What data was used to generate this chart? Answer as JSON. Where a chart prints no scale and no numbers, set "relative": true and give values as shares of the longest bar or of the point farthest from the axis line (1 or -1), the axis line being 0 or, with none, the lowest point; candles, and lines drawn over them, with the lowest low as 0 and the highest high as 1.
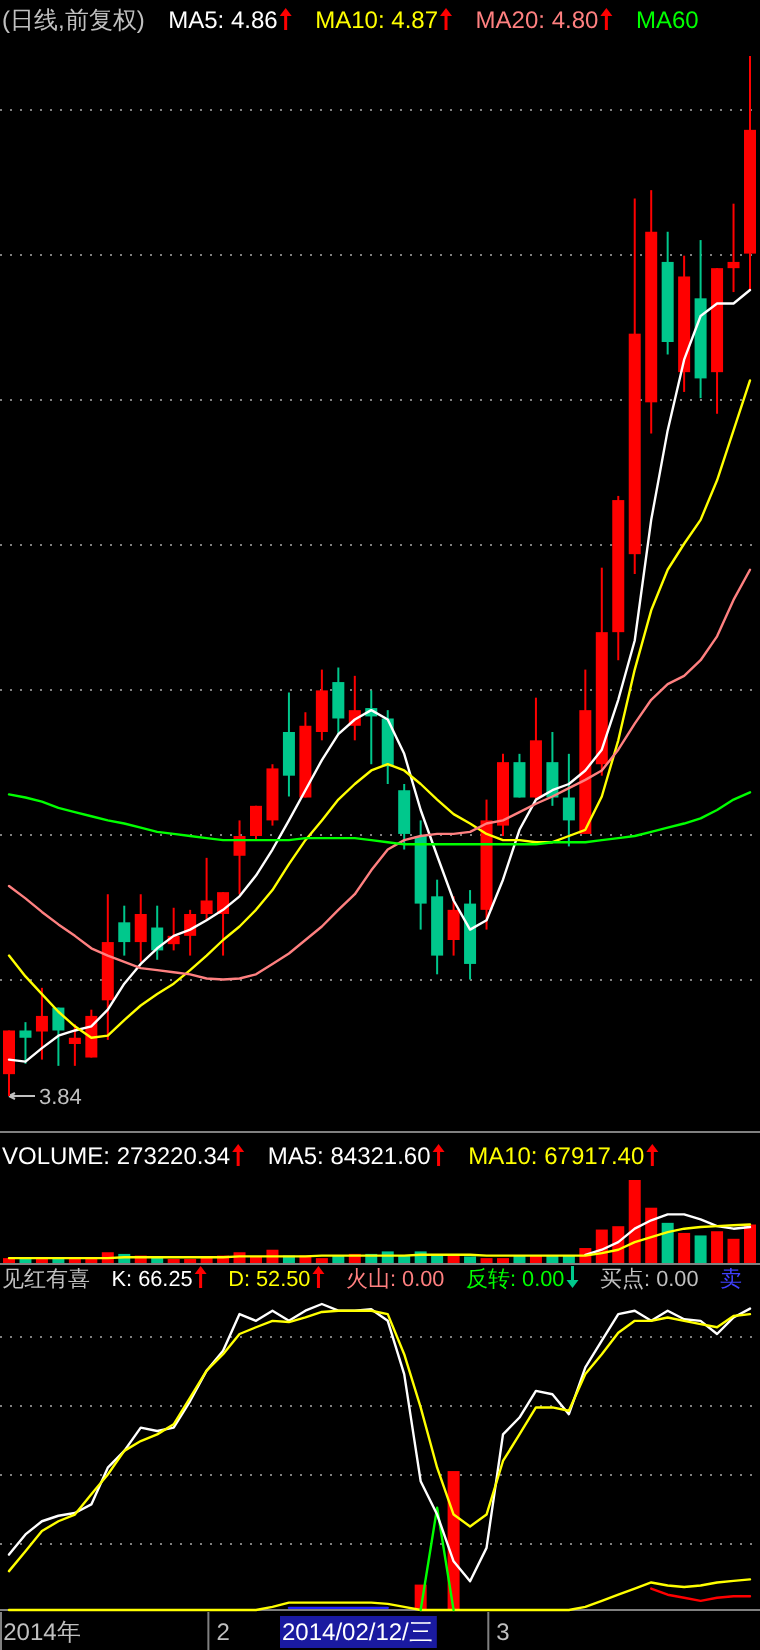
{
  "chart_data": [
    {
      "type": "candlestick",
      "title": "(日线,前复权)",
      "relative": true,
      "tick_labels": false,
      "grid": "y",
      "legend": "top",
      "categories": [
        null,
        null,
        null,
        null,
        null,
        null,
        null,
        null,
        null,
        null,
        null,
        null,
        null,
        null,
        null,
        null,
        null,
        null,
        null,
        null,
        null,
        null,
        null,
        null,
        null,
        null,
        null,
        null,
        null,
        null,
        null,
        null,
        null,
        null,
        null,
        null,
        null,
        null,
        null,
        null,
        null,
        null,
        null,
        null,
        null,
        null
      ],
      "ohlc": [
        [
          0.021,
          0.063,
          0,
          0.063
        ],
        [
          0.063,
          0.071,
          0.031,
          0.056
        ],
        [
          0.062,
          0.104,
          0.035,
          0.077
        ],
        [
          0.085,
          0.085,
          0.029,
          0.063
        ],
        [
          0.05,
          0.069,
          0.029,
          0.056
        ],
        [
          0.037,
          0.083,
          0.037,
          0.077
        ],
        [
          0.092,
          0.194,
          0.054,
          0.148
        ],
        [
          0.167,
          0.183,
          0.135,
          0.148
        ],
        [
          0.148,
          0.194,
          0.129,
          0.175
        ],
        [
          0.162,
          0.183,
          0.131,
          0.14
        ],
        [
          0.146,
          0.181,
          0.14,
          0.154
        ],
        [
          0.154,
          0.179,
          0.135,
          0.175
        ],
        [
          0.175,
          0.229,
          0.169,
          0.188
        ],
        [
          0.175,
          0.196,
          0.135,
          0.196
        ],
        [
          0.231,
          0.265,
          0.194,
          0.25
        ],
        [
          0.25,
          0.279,
          0.246,
          0.279
        ],
        [
          0.265,
          0.319,
          0.26,
          0.315
        ],
        [
          0.35,
          0.388,
          0.288,
          0.308
        ],
        [
          0.287,
          0.369,
          0.287,
          0.356
        ],
        [
          0.35,
          0.41,
          0.342,
          0.39
        ],
        [
          0.398,
          0.412,
          0.348,
          0.363
        ],
        [
          0.356,
          0.404,
          0.342,
          0.371
        ],
        [
          0.373,
          0.39,
          0.319,
          0.365
        ],
        [
          0.363,
          0.371,
          0.3,
          0.317
        ],
        [
          0.294,
          0.3,
          0.237,
          0.252
        ],
        [
          0.25,
          0.265,
          0.16,
          0.185
        ],
        [
          0.192,
          0.208,
          0.117,
          0.135
        ],
        [
          0.15,
          0.192,
          0.135,
          0.179
        ],
        [
          0.185,
          0.198,
          0.112,
          0.127
        ],
        [
          0.179,
          0.285,
          0.16,
          0.265
        ],
        [
          0.26,
          0.329,
          0.25,
          0.321
        ],
        [
          0.321,
          0.329,
          0.287,
          0.287
        ],
        [
          0.287,
          0.383,
          0.285,
          0.342
        ],
        [
          0.321,
          0.35,
          0.279,
          0.287
        ],
        [
          0.287,
          0.329,
          0.24,
          0.265
        ],
        [
          0.252,
          0.41,
          0.252,
          0.371
        ],
        [
          0.319,
          0.508,
          0.308,
          0.446
        ],
        [
          0.446,
          0.577,
          0.419,
          0.573
        ],
        [
          0.521,
          0.863,
          0.502,
          0.733
        ],
        [
          0.667,
          0.871,
          0.637,
          0.831
        ],
        [
          0.802,
          0.831,
          0.713,
          0.725
        ],
        [
          0.696,
          0.808,
          0.677,
          0.788
        ],
        [
          0.767,
          0.823,
          0.671,
          0.69
        ],
        [
          0.696,
          0.796,
          0.656,
          0.796
        ],
        [
          0.796,
          0.858,
          0.773,
          0.802
        ],
        [
          0.81,
          1,
          0.775,
          0.929
        ]
      ],
      "colors": [
        "#ff0000",
        "#00c88c",
        "#ff0000",
        "#00c88c",
        "#ff0000",
        "#ff0000",
        "#ff0000",
        "#00c88c",
        "#ff0000",
        "#00c88c",
        "#ff0000",
        "#ff0000",
        "#ff0000",
        "#ff0000",
        "#ff0000",
        "#ff0000",
        "#ff0000",
        "#00c88c",
        "#ff0000",
        "#ff0000",
        "#00c88c",
        "#ff0000",
        "#00c88c",
        "#00c88c",
        "#00c88c",
        "#00c88c",
        "#00c88c",
        "#ff0000",
        "#00c88c",
        "#ff0000",
        "#ff0000",
        "#00c88c",
        "#ff0000",
        "#00c88c",
        "#00c88c",
        "#ff0000",
        "#ff0000",
        "#ff0000",
        "#ff0000",
        "#ff0000",
        "#00c88c",
        "#ff0000",
        "#00c88c",
        "#ff0000",
        "#ff0000",
        "#ff0000"
      ],
      "series": [
        {
          "type": "line",
          "name": "MA5: 4.86",
          "color": "#ffffff",
          "values": [
            0.035,
            0.033,
            0.046,
            0.058,
            0.063,
            0.067,
            0.083,
            0.108,
            0.127,
            0.142,
            0.154,
            0.16,
            0.169,
            0.179,
            0.192,
            0.212,
            0.237,
            0.265,
            0.294,
            0.323,
            0.348,
            0.362,
            0.371,
            0.362,
            0.329,
            0.275,
            0.231,
            0.188,
            0.16,
            0.169,
            0.208,
            0.256,
            0.285,
            0.294,
            0.3,
            0.313,
            0.333,
            0.381,
            0.438,
            0.554,
            0.64,
            0.708,
            0.75,
            0.762,
            0.762,
            0.775
          ]
        },
        {
          "type": "line",
          "name": "MA10: 4.87",
          "color": "#ffff00",
          "values": [
            0.135,
            0.115,
            0.098,
            0.081,
            0.067,
            0.056,
            0.058,
            0.073,
            0.087,
            0.098,
            0.108,
            0.121,
            0.135,
            0.15,
            0.163,
            0.179,
            0.198,
            0.223,
            0.246,
            0.265,
            0.285,
            0.3,
            0.313,
            0.319,
            0.313,
            0.3,
            0.285,
            0.271,
            0.262,
            0.252,
            0.246,
            0.246,
            0.244,
            0.244,
            0.25,
            0.256,
            0.288,
            0.342,
            0.41,
            0.467,
            0.506,
            0.531,
            0.554,
            0.592,
            0.64,
            0.688
          ]
        },
        {
          "type": "line",
          "name": "MA20: 4.80",
          "color": "#ff8080",
          "values": [
            0.202,
            0.19,
            0.177,
            0.165,
            0.154,
            0.142,
            0.135,
            0.129,
            0.123,
            0.121,
            0.119,
            0.117,
            0.113,
            0.112,
            0.113,
            0.117,
            0.127,
            0.137,
            0.15,
            0.163,
            0.179,
            0.194,
            0.217,
            0.237,
            0.246,
            0.25,
            0.252,
            0.252,
            0.254,
            0.262,
            0.265,
            0.273,
            0.281,
            0.288,
            0.296,
            0.304,
            0.313,
            0.333,
            0.358,
            0.381,
            0.396,
            0.404,
            0.419,
            0.442,
            0.477,
            0.506
          ]
        },
        {
          "type": "line",
          "name": "MA60",
          "color": "#00ff00",
          "values": [
            0.29,
            0.287,
            0.283,
            0.277,
            0.273,
            0.269,
            0.265,
            0.262,
            0.258,
            0.254,
            0.252,
            0.25,
            0.248,
            0.246,
            0.246,
            0.246,
            0.246,
            0.246,
            0.248,
            0.248,
            0.248,
            0.248,
            0.246,
            0.244,
            0.242,
            0.242,
            0.242,
            0.242,
            0.242,
            0.242,
            0.242,
            0.242,
            0.242,
            0.244,
            0.244,
            0.244,
            0.246,
            0.248,
            0.25,
            0.254,
            0.258,
            0.262,
            0.267,
            0.275,
            0.285,
            0.292
          ]
        }
      ],
      "annotations": [
        "3.84"
      ]
    },
    {
      "type": "bar",
      "relative": true,
      "tick_labels": false,
      "legend": "top",
      "categories": [
        null,
        null,
        null,
        null,
        null,
        null,
        null,
        null,
        null,
        null,
        null,
        null,
        null,
        null,
        null,
        null,
        null,
        null,
        null,
        null,
        null,
        null,
        null,
        null,
        null,
        null,
        null,
        null,
        null,
        null,
        null,
        null,
        null,
        null,
        null,
        null,
        null,
        null,
        null,
        null,
        null,
        null,
        null,
        null,
        null,
        null
      ],
      "series": [
        {
          "type": "bar",
          "name": "VOLUME: 273220.34",
          "color": "#ffffff",
          "colors": [
            "#ff0000",
            "#00c88c",
            "#ff0000",
            "#00c88c",
            "#ff0000",
            "#ff0000",
            "#ff0000",
            "#00c88c",
            "#ff0000",
            "#00c88c",
            "#ff0000",
            "#ff0000",
            "#ff0000",
            "#ff0000",
            "#ff0000",
            "#ff0000",
            "#ff0000",
            "#00c88c",
            "#ff0000",
            "#ff0000",
            "#00c88c",
            "#ff0000",
            "#00c88c",
            "#00c88c",
            "#00c88c",
            "#00c88c",
            "#00c88c",
            "#ff0000",
            "#00c88c",
            "#ff0000",
            "#ff0000",
            "#00c88c",
            "#ff0000",
            "#00c88c",
            "#00c88c",
            "#ff0000",
            "#ff0000",
            "#ff0000",
            "#ff0000",
            "#ff0000",
            "#00c88c",
            "#ff0000",
            "#00c88c",
            "#ff0000",
            "#ff0000",
            "#ff0000"
          ],
          "values": [
            0.07,
            0.07,
            0.06,
            0.07,
            0.07,
            0.07,
            0.14,
            0.12,
            0.1,
            0.08,
            0.06,
            0.06,
            0.08,
            0.1,
            0.14,
            0.09,
            0.17,
            0.1,
            0.1,
            0.07,
            0.1,
            0.12,
            0.12,
            0.15,
            0.1,
            0.15,
            0.1,
            0.1,
            0.09,
            0.07,
            0.07,
            0.1,
            0.1,
            0.1,
            0.1,
            0.19,
            0.41,
            0.45,
            1,
            0.67,
            0.49,
            0.37,
            0.34,
            0.39,
            0.3,
            0.47
          ]
        }
      ]
    },
    {
      "type": "line",
      "relative": true,
      "tick_labels": false,
      "legend": "top",
      "categories": [
        null,
        null,
        null,
        null,
        null,
        null,
        null,
        null,
        null,
        null,
        null,
        null,
        null,
        null,
        null,
        null,
        null,
        null,
        null,
        null,
        null,
        null,
        null,
        null,
        null,
        null,
        null,
        null,
        null,
        null,
        null,
        null,
        null,
        null,
        null,
        null,
        null,
        null,
        null,
        null,
        null,
        null,
        null,
        null,
        null,
        null
      ],
      "series": [
        {
          "type": "line",
          "name": "MA5: 84321.60",
          "color": "#ffffff",
          "values": [
            null,
            null,
            null,
            null,
            null,
            null,
            null,
            null,
            null,
            null,
            null,
            null,
            null,
            null,
            null,
            null,
            null,
            null,
            null,
            null,
            null,
            null,
            null,
            null,
            null,
            null,
            null,
            null,
            null,
            null,
            null,
            null,
            null,
            null,
            null,
            0.186,
            0.288,
            0.441,
            0.712,
            0.881,
            1,
            1,
            0.898,
            0.763,
            0.712,
            0.746
          ]
        },
        {
          "type": "line",
          "name": "MA10: 67917.40",
          "color": "#ffff00",
          "values": [
            0.119,
            0.119,
            0.119,
            0.119,
            0.119,
            0.119,
            0.119,
            0.136,
            0.136,
            0.136,
            0.136,
            0.136,
            0.136,
            0.136,
            0.153,
            0.153,
            0.153,
            0.153,
            0.153,
            0.169,
            0.169,
            0.169,
            0.169,
            0.169,
            0.169,
            0.186,
            0.186,
            0.186,
            0.186,
            0.169,
            0.169,
            0.169,
            0.169,
            0.169,
            0.169,
            0.169,
            0.22,
            0.288,
            0.441,
            0.542,
            0.644,
            0.712,
            0.746,
            0.763,
            0.78,
            0.797
          ]
        }
      ]
    },
    {
      "type": "line",
      "title": "见红有喜",
      "relative": true,
      "tick_labels": "x",
      "grid": "y",
      "legend": "top",
      "categories": [
        null,
        null,
        "2014年",
        null,
        null,
        null,
        null,
        null,
        null,
        null,
        null,
        null,
        null,
        "2",
        null,
        null,
        null,
        null,
        null,
        null,
        null,
        null,
        null,
        null,
        null,
        null,
        null,
        null,
        null,
        null,
        "3",
        null,
        null,
        null,
        null,
        null,
        null,
        null,
        null,
        null,
        null,
        null,
        null,
        null,
        null,
        null
      ],
      "series": [
        {
          "type": "line",
          "color": "#2020ff",
          "values": [
            null,
            null,
            null,
            null,
            null,
            null,
            null,
            null,
            null,
            null,
            null,
            null,
            null,
            null,
            null,
            null,
            null,
            0.007,
            0.007,
            0.007,
            0.007,
            0.007,
            0.007,
            0.007,
            null,
            null,
            null,
            null,
            null,
            null,
            null,
            null,
            null,
            null,
            null,
            null,
            null,
            null,
            null,
            null,
            null,
            null,
            null,
            null,
            null,
            null
          ]
        },
        {
          "type": "line",
          "color": "#ff0000",
          "values": [
            null,
            null,
            null,
            null,
            null,
            null,
            null,
            null,
            null,
            null,
            null,
            null,
            null,
            null,
            null,
            null,
            null,
            null,
            null,
            null,
            null,
            null,
            null,
            null,
            null,
            null,
            null,
            null,
            null,
            null,
            null,
            null,
            null,
            null,
            null,
            null,
            null,
            null,
            null,
            0.07,
            0.05,
            0.04,
            0.03,
            0.04,
            0.045,
            0.045
          ]
        },
        {
          "type": "line",
          "color": "#ffff00",
          "values": [
            0,
            0,
            0,
            0,
            0,
            0,
            0,
            0,
            0,
            0,
            0,
            0,
            0,
            0,
            0,
            0,
            0.01,
            0.024,
            0.024,
            0.024,
            0.024,
            0.024,
            0.024,
            0.02,
            0.01,
            0,
            0,
            0,
            0,
            0,
            0,
            0,
            0,
            0,
            0,
            0.01,
            0.03,
            0.05,
            0.07,
            0.09,
            0.08,
            0.075,
            0.08,
            0.09,
            0.095,
            0.1
          ]
        },
        {
          "type": "bar",
          "color": "#ff0000",
          "values": [
            null,
            null,
            null,
            null,
            null,
            null,
            null,
            null,
            null,
            null,
            null,
            null,
            null,
            null,
            null,
            null,
            null,
            null,
            null,
            null,
            null,
            null,
            null,
            null,
            null,
            0.083,
            null,
            0.454,
            null,
            null,
            null,
            null,
            null,
            null,
            null,
            null,
            null,
            null,
            null,
            null,
            null,
            null,
            null,
            null,
            null,
            null
          ]
        },
        {
          "type": "line",
          "color": "#00ff00",
          "values": [
            null,
            null,
            null,
            null,
            null,
            null,
            null,
            null,
            null,
            null,
            null,
            null,
            null,
            null,
            null,
            null,
            null,
            null,
            null,
            null,
            null,
            null,
            null,
            null,
            null,
            0,
            0.334,
            0,
            null,
            null,
            null,
            null,
            null,
            null,
            null,
            null,
            null,
            null,
            null,
            null,
            null,
            null,
            null,
            null,
            null,
            null
          ]
        },
        {
          "type": "line",
          "name": "K: 66.25",
          "color": "#ffffff",
          "values": [
            0.181,
            0.247,
            0.29,
            0.308,
            0.317,
            0.345,
            0.465,
            0.52,
            0.596,
            0.585,
            0.596,
            0.683,
            0.782,
            0.847,
            0.967,
            0.945,
            0.978,
            0.945,
            0.978,
            1,
            0.978,
            0.978,
            0.983,
            0.945,
            0.771,
            0.421,
            0.312,
            0.159,
            0.094,
            0.203,
            0.574,
            0.629,
            0.716,
            0.705,
            0.64,
            0.793,
            0.88,
            0.967,
            0.978,
            0.945,
            0.978,
            0.95,
            0.945,
            0.902,
            0.956,
            0.985
          ]
        },
        {
          "type": "line",
          "name": "D: 52.50",
          "color": "#ffff00",
          "values": [
            0.127,
            0.192,
            0.258,
            0.29,
            0.312,
            0.378,
            0.443,
            0.52,
            0.552,
            0.574,
            0.607,
            0.694,
            0.782,
            0.836,
            0.902,
            0.924,
            0.945,
            0.941,
            0.956,
            0.974,
            0.978,
            0.978,
            0.978,
            0.967,
            0.836,
            0.662,
            0.465,
            0.312,
            0.273,
            0.312,
            0.487,
            0.574,
            0.662,
            0.662,
            0.651,
            0.771,
            0.836,
            0.906,
            0.945,
            0.945,
            0.956,
            0.945,
            0.934,
            0.924,
            0.961,
            0.967
          ]
        }
      ],
      "annotations": [
        "火山: 0.00",
        "反转: 0.00",
        "买点: 0.00",
        "卖",
        "2014/02/12/三"
      ]
    }
  ]
}
